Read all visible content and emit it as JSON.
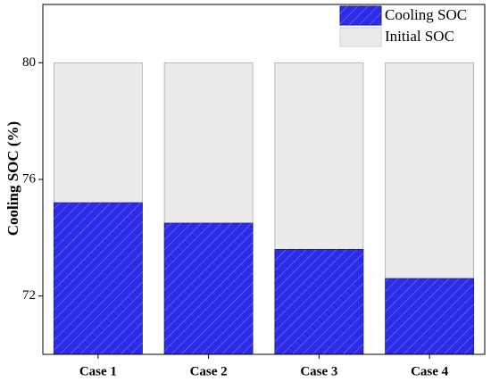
{
  "chart_data": {
    "type": "bar",
    "ylabel": "Cooling SOC (%)",
    "categories": [
      "Case 1",
      "Case 2",
      "Case 3",
      "Case 4"
    ],
    "series": [
      {
        "name": "Cooling SOC",
        "color": "#2b2be8",
        "values": [
          75.2,
          74.5,
          73.6,
          72.6
        ]
      },
      {
        "name": "Initial SOC",
        "color": "#ebebeb",
        "values": [
          80,
          80,
          80,
          80
        ]
      }
    ],
    "ylim": [
      70,
      82
    ],
    "yticks": [
      72,
      76,
      80
    ],
    "legend": "upper right"
  }
}
